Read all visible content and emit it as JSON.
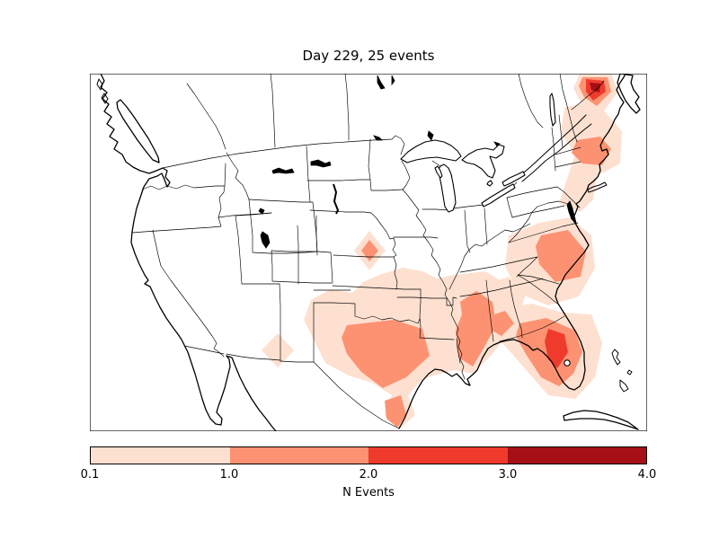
{
  "figure": {
    "title": "Day 229, 25 events",
    "day": 229,
    "total_events": 25
  },
  "colorbar": {
    "label": "N Events",
    "ticks": [
      "0.1",
      "1.0",
      "2.0",
      "3.0",
      "4.0"
    ],
    "tick_positions": [
      0,
      0.25,
      0.5,
      0.75,
      1
    ],
    "colors": [
      "#fde0d0",
      "#fc9272",
      "#ef3b2c",
      "#a50f15"
    ],
    "levels": [
      0.1,
      1.0,
      2.0,
      3.0,
      4.0
    ]
  },
  "chart_data": {
    "type": "heatmap",
    "subtype": "filled-contour-event-density-map",
    "title": "Day 229, 25 events",
    "colorbar_label": "N Events",
    "levels": [
      0.1,
      1.0,
      2.0,
      3.0,
      4.0
    ],
    "level_colors": [
      "#fde0d0",
      "#fc9272",
      "#ef3b2c",
      "#a50f15"
    ],
    "extent": "Continental United States with southern Canada and northern Mexico",
    "legend_position": "horizontal colorbar below map",
    "regions": [
      {
        "area": "Maine / New Brunswick border",
        "n_events": "3-4 (dark red core, concentric halos)"
      },
      {
        "area": "Coastal New England (Boston / Cape Cod)",
        "n_events": "1-2"
      },
      {
        "area": "Mid-Atlantic coastal strip (NJ-Delaware)",
        "n_events": "0.1-1"
      },
      {
        "area": "Eastern North Carolina",
        "n_events": "1-2 core, 0.1-1 halo over VA/NC/SC"
      },
      {
        "area": "Central Florida",
        "n_events": "2-3 core"
      },
      {
        "area": "Florida peninsula",
        "n_events": "1-2"
      },
      {
        "area": "Southwest Georgia",
        "n_events": "1-2"
      },
      {
        "area": "Mississippi / Alabama border",
        "n_events": "1-2"
      },
      {
        "area": "Central Texas",
        "n_events": "1-2"
      },
      {
        "area": "Southern tip of Texas",
        "n_events": "1-2"
      },
      {
        "area": "Southern Plains OK/AR/LA/East-TX",
        "n_events": "0.1-1"
      },
      {
        "area": "Nebraska / Kansas border diamond",
        "n_events": "1-2 core, 0.1-1 halo"
      },
      {
        "area": "New Mexico / West Texas diamond",
        "n_events": "0.1-1"
      }
    ]
  }
}
